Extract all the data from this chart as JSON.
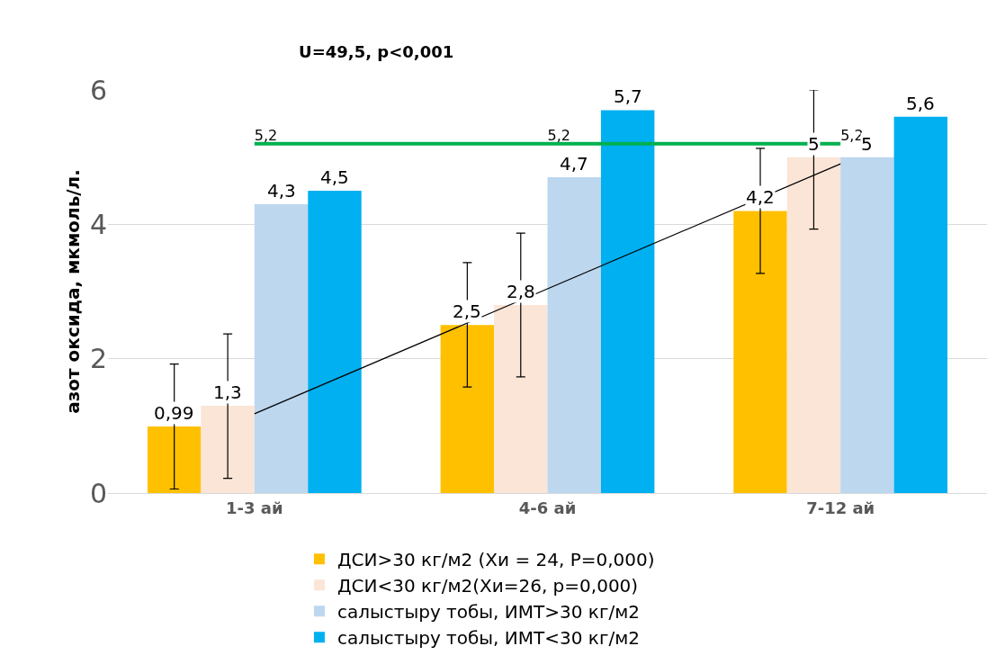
{
  "chart_data": {
    "type": "bar",
    "title": "U=49,5, p<0,001",
    "ylabel": "азот оксида, мкмоль/л.",
    "categories": [
      "1-3 ай",
      "4-6 ай",
      "7-12 ай"
    ],
    "ylim": [
      0,
      6
    ],
    "yticks": [
      0,
      2,
      4,
      6
    ],
    "grid": "y",
    "legend": "bottom",
    "series": [
      {
        "name": "ДСИ>30 кг/м2 (Хи = 24, Р=0,000)",
        "color": "#ffc000",
        "values": [
          0.99,
          2.5,
          4.2
        ],
        "value_labels": [
          "0,99",
          "2,5",
          "4,2"
        ],
        "errors": [
          [
            0.06,
            1.92
          ],
          [
            1.58,
            3.43
          ],
          [
            3.27,
            5.13
          ]
        ]
      },
      {
        "name": "ДСИ<30 кг/м2(Хи=26, р=0,000)",
        "color": "#fbe5d6",
        "values": [
          1.3,
          2.8,
          5
        ],
        "value_labels": [
          "1,3",
          "2,8",
          "5"
        ],
        "errors": [
          [
            0.22,
            2.37
          ],
          [
            1.73,
            3.87
          ],
          [
            3.93,
            6
          ]
        ]
      },
      {
        "name": "салыстыру тобы, ИМТ>30 кг/м2",
        "color": "#bdd7ee",
        "values": [
          4.3,
          4.7,
          5
        ],
        "value_labels": [
          "4,3",
          "4,7",
          "5"
        ]
      },
      {
        "name": "салыстыру тобы, ИМТ<30 кг/м2",
        "color": "#00b0f0",
        "values": [
          4.5,
          5.7,
          5.6
        ],
        "value_labels": [
          "4,5",
          "5,7",
          "5,6"
        ]
      },
      {
        "type": "line",
        "color": "#00b050",
        "values": [
          5.2,
          5.2,
          5.2
        ],
        "value_labels": [
          "5,2",
          "5,2",
          "5,2"
        ]
      },
      {
        "type": "line",
        "color": "#000000",
        "values": [
          1.18,
          3.04,
          4.9
        ]
      }
    ]
  }
}
